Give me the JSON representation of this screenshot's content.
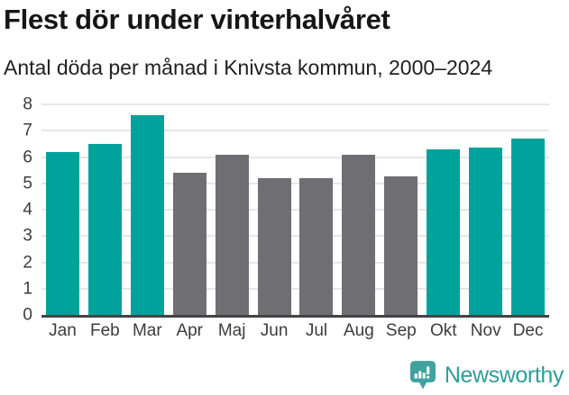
{
  "header": {
    "title": "Flest dör under vinterhalvåret",
    "subtitle": "Antal döda per månad i Knivsta kommun, 2000–2024"
  },
  "chart_data": {
    "type": "bar",
    "title": "Flest dör under vinterhalvåret",
    "subtitle": "Antal döda per månad i Knivsta kommun, 2000–2024",
    "categories": [
      "Jan",
      "Feb",
      "Mar",
      "Apr",
      "Maj",
      "Jun",
      "Jul",
      "Aug",
      "Sep",
      "Okt",
      "Nov",
      "Dec"
    ],
    "values": [
      6.2,
      6.5,
      7.6,
      5.4,
      6.1,
      5.2,
      5.2,
      6.1,
      5.25,
      6.3,
      6.35,
      6.7
    ],
    "bar_roles": [
      "highlight",
      "highlight",
      "highlight",
      "base",
      "base",
      "base",
      "base",
      "base",
      "base",
      "highlight",
      "highlight",
      "highlight"
    ],
    "bar_palette": {
      "highlight": "#00A39B",
      "base": "#6E6E73"
    },
    "xlabel": "",
    "ylabel": "",
    "ylim": [
      0,
      8
    ],
    "ytick_step": 1,
    "yticks": [
      0,
      1,
      2,
      3,
      4,
      5,
      6,
      7,
      8
    ],
    "grid": true,
    "gridline_color": "#E6E6E6",
    "baseline_color": "#444444",
    "axis_label_color": "#3C3C3C",
    "legend_position": "none"
  },
  "footer": {
    "logo_text": "Newsworthy",
    "logo_text_color": "#2F9E99",
    "logo_badge_color": "#3FA29E",
    "logo_mark_color": "#FFFFFF"
  }
}
